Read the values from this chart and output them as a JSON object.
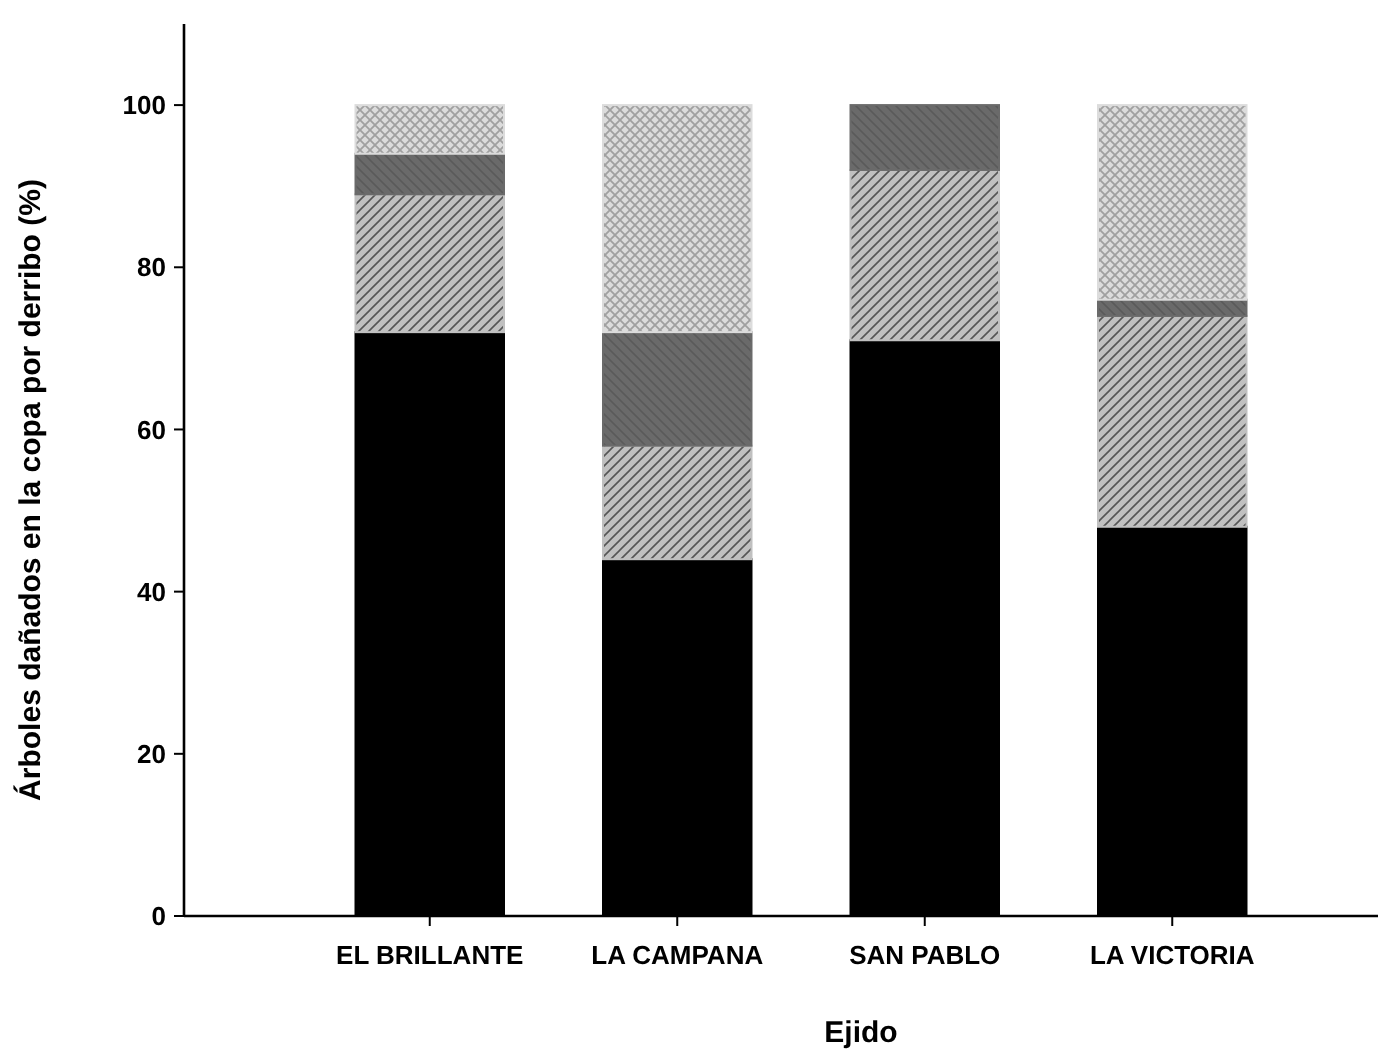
{
  "chart_data": {
    "type": "bar",
    "stacked": true,
    "xlabel": "Ejido",
    "ylabel": "Árboles dañados en la copa por derribo (%)",
    "categories": [
      "EL BRILLANTE",
      "LA CAMPANA",
      "SAN PABLO",
      "LA VICTORIA"
    ],
    "series": [
      {
        "color": "#000000",
        "values": [
          72,
          44,
          71,
          48
        ]
      },
      {
        "color": "#c0c0c0",
        "values": [
          17,
          14,
          21,
          26
        ]
      },
      {
        "color": "#6a6a6a",
        "values": [
          5,
          14,
          8,
          2
        ]
      },
      {
        "color": "#dcdcdc",
        "values": [
          6,
          28,
          0,
          24
        ]
      }
    ],
    "ylim": [
      0,
      110
    ],
    "yticks": [
      0,
      20,
      40,
      60,
      80,
      100
    ],
    "grid": false
  }
}
